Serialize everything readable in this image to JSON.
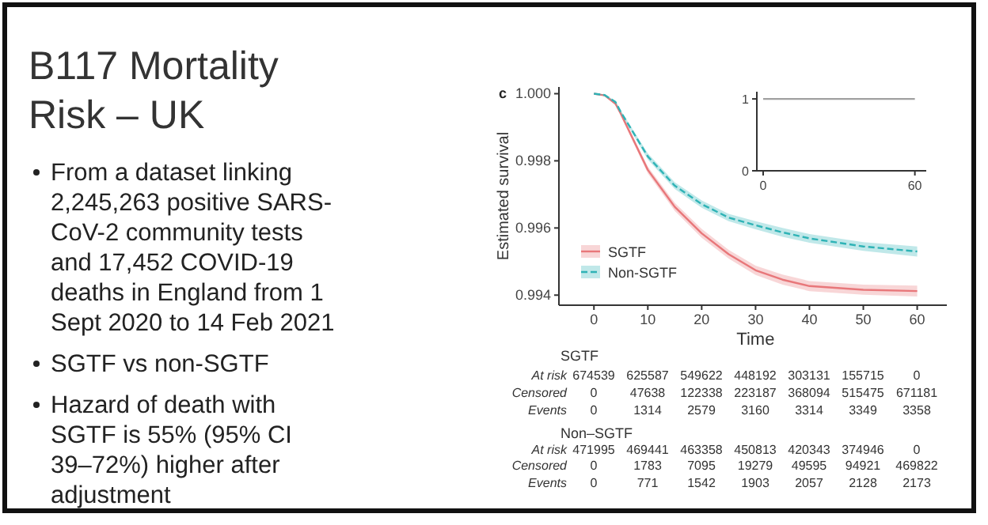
{
  "chart_data": [
    {
      "type": "other",
      "title": "B117 Mortality Risk – UK",
      "annotations": [
        "From a dataset linking 2,245,263 positive SARS-CoV-2 community tests and 17,452 COVID-19 deaths in England from 1 Sept 2020 to 14 Feb 2021",
        "SGTF vs non-SGTF",
        "Hazard of death with SGTF is 55% (95% CI 39–72%) higher after adjustment"
      ]
    },
    {
      "type": "line",
      "annotations": [
        "c"
      ],
      "xlabel": "Time",
      "ylabel": "Estimated survival",
      "x": [
        0,
        2,
        4,
        5,
        10,
        15,
        20,
        25,
        30,
        35,
        40,
        50,
        60
      ],
      "series": [
        {
          "name": "SGTF",
          "color": "#e8777a",
          "line_style": "solid",
          "values": [
            1,
            0.99995,
            0.9997,
            0.9994,
            0.99773,
            0.99663,
            0.99584,
            0.99522,
            0.99474,
            0.99446,
            0.99427,
            0.99416,
            0.99412
          ],
          "lower": [
            1,
            0.99993,
            0.99966,
            0.99934,
            0.99763,
            0.99651,
            0.99571,
            0.99509,
            0.9946,
            0.99431,
            0.99412,
            0.99401,
            0.99396
          ],
          "upper": [
            1,
            0.99997,
            0.99974,
            0.99946,
            0.99783,
            0.99675,
            0.99597,
            0.99535,
            0.99488,
            0.99461,
            0.99442,
            0.99431,
            0.99428
          ]
        },
        {
          "name": "Non-SGTF",
          "color": "#2fb3b6",
          "line_style": "dashed",
          "values": [
            1,
            0.99996,
            0.99975,
            0.99945,
            0.99813,
            0.99726,
            0.99671,
            0.99631,
            0.99608,
            0.99587,
            0.99569,
            0.99545,
            0.9953
          ],
          "lower": [
            1,
            0.99994,
            0.99971,
            0.9994,
            0.99804,
            0.99716,
            0.9966,
            0.9962,
            0.99596,
            0.99574,
            0.99556,
            0.99532,
            0.99515
          ],
          "upper": [
            1,
            0.99998,
            0.99979,
            0.9995,
            0.99822,
            0.99736,
            0.99682,
            0.99642,
            0.9962,
            0.996,
            0.99582,
            0.99558,
            0.99545
          ]
        }
      ],
      "xlim": [
        -6.5,
        65.5
      ],
      "xticks": [
        0,
        10,
        20,
        30,
        40,
        50,
        60
      ],
      "ylim": [
        0.9937,
        1.0002
      ],
      "yticks": [
        {
          "value": 1,
          "label": "1.000"
        },
        {
          "value": 0.998,
          "label": "0.998"
        },
        {
          "value": 0.996,
          "label": "0.996"
        },
        {
          "value": 0.994,
          "label": "0.994"
        }
      ],
      "legend": "bottom left"
    },
    {
      "type": "line",
      "x": [
        0,
        60
      ],
      "series": [
        {
          "color": "#a0a0a0",
          "values": [
            1,
            1
          ]
        }
      ],
      "xlim": [
        -2.5,
        64.5
      ],
      "xticks": [
        0,
        60
      ],
      "ylim": [
        0,
        1.1
      ],
      "yticks": [
        0,
        1
      ]
    },
    {
      "type": "other",
      "annotations": [
        "SGTF",
        "At risk 674539 625587 549622 448192 303131 155715 0",
        "Censored 0 47638 122338 223187 368094 515475 671181",
        "Events 0 1314 2579 3160 3314 3349 3358",
        "Non–SGTF",
        "At risk 471995 469441 463358 450813 420343 374946 0",
        "Censored 0 1783 7095 19279 49595 94921 469822",
        "Events 0 771 1542 1903 2057 2128 2173"
      ]
    }
  ]
}
